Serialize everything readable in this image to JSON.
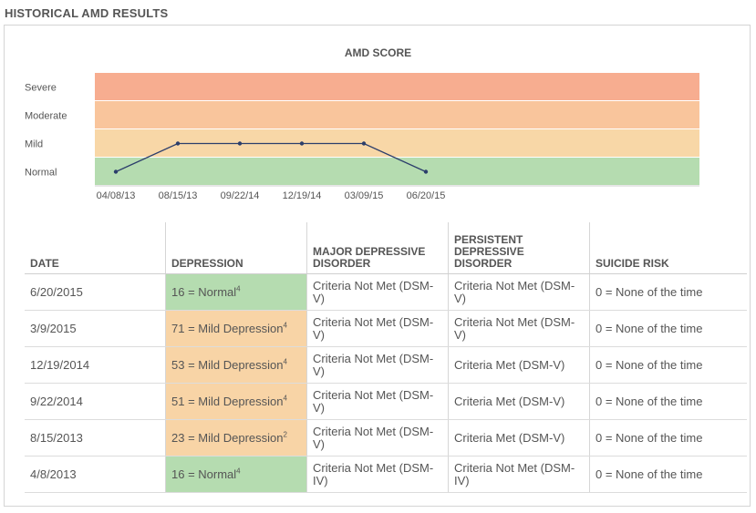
{
  "section_title": "HISTORICAL AMD RESULTS",
  "chart_data": {
    "type": "line",
    "title": "AMD SCORE",
    "bands": [
      {
        "label": "Severe",
        "color": "#f7ad90"
      },
      {
        "label": "Moderate",
        "color": "#f9c59c"
      },
      {
        "label": "Mild",
        "color": "#f8d7a7"
      },
      {
        "label": "Normal",
        "color": "#b5dcb0"
      }
    ],
    "categories": [
      "04/08/13",
      "08/15/13",
      "09/22/14",
      "12/19/14",
      "03/09/15",
      "06/20/15"
    ],
    "series": [
      {
        "values": [
          "Normal",
          "Mild",
          "Mild",
          "Mild",
          "Mild",
          "Normal"
        ],
        "color": "#2c3e6b"
      }
    ]
  },
  "table": {
    "headers": [
      "DATE",
      "DEPRESSION",
      "MAJOR DEPRESSIVE DISORDER",
      "PERSISTENT DEPRESSIVE DISORDER",
      "SUICIDE RISK"
    ],
    "rows": [
      {
        "date": "6/20/2015",
        "depression": "16 = Normal",
        "footnote": "4",
        "level": "normal",
        "major": "Criteria Not Met (DSM-V)",
        "persistent": "Criteria Not Met (DSM-V)",
        "suicide": "0 = None of the time"
      },
      {
        "date": "3/9/2015",
        "depression": "71 = Mild Depression",
        "footnote": "4",
        "level": "mild",
        "major": "Criteria Not Met (DSM-V)",
        "persistent": "Criteria Not Met (DSM-V)",
        "suicide": "0 = None of the time"
      },
      {
        "date": "12/19/2014",
        "depression": "53 = Mild Depression",
        "footnote": "4",
        "level": "mild",
        "major": "Criteria Not Met (DSM-V)",
        "persistent": "Criteria Met (DSM-V)",
        "suicide": "0 = None of the time"
      },
      {
        "date": "9/22/2014",
        "depression": "51 = Mild Depression",
        "footnote": "4",
        "level": "mild",
        "major": "Criteria Not Met (DSM-V)",
        "persistent": "Criteria Met (DSM-V)",
        "suicide": "0 = None of the time"
      },
      {
        "date": "8/15/2013",
        "depression": "23 = Mild Depression",
        "footnote": "2",
        "level": "mild",
        "major": "Criteria Not Met (DSM-V)",
        "persistent": "Criteria Met (DSM-V)",
        "suicide": "0 = None of the time"
      },
      {
        "date": "4/8/2013",
        "depression": "16 = Normal",
        "footnote": "4",
        "level": "normal",
        "major": "Criteria Not Met (DSM-IV)",
        "persistent": "Criteria Not Met (DSM-IV)",
        "suicide": "0 = None of the time"
      }
    ]
  }
}
